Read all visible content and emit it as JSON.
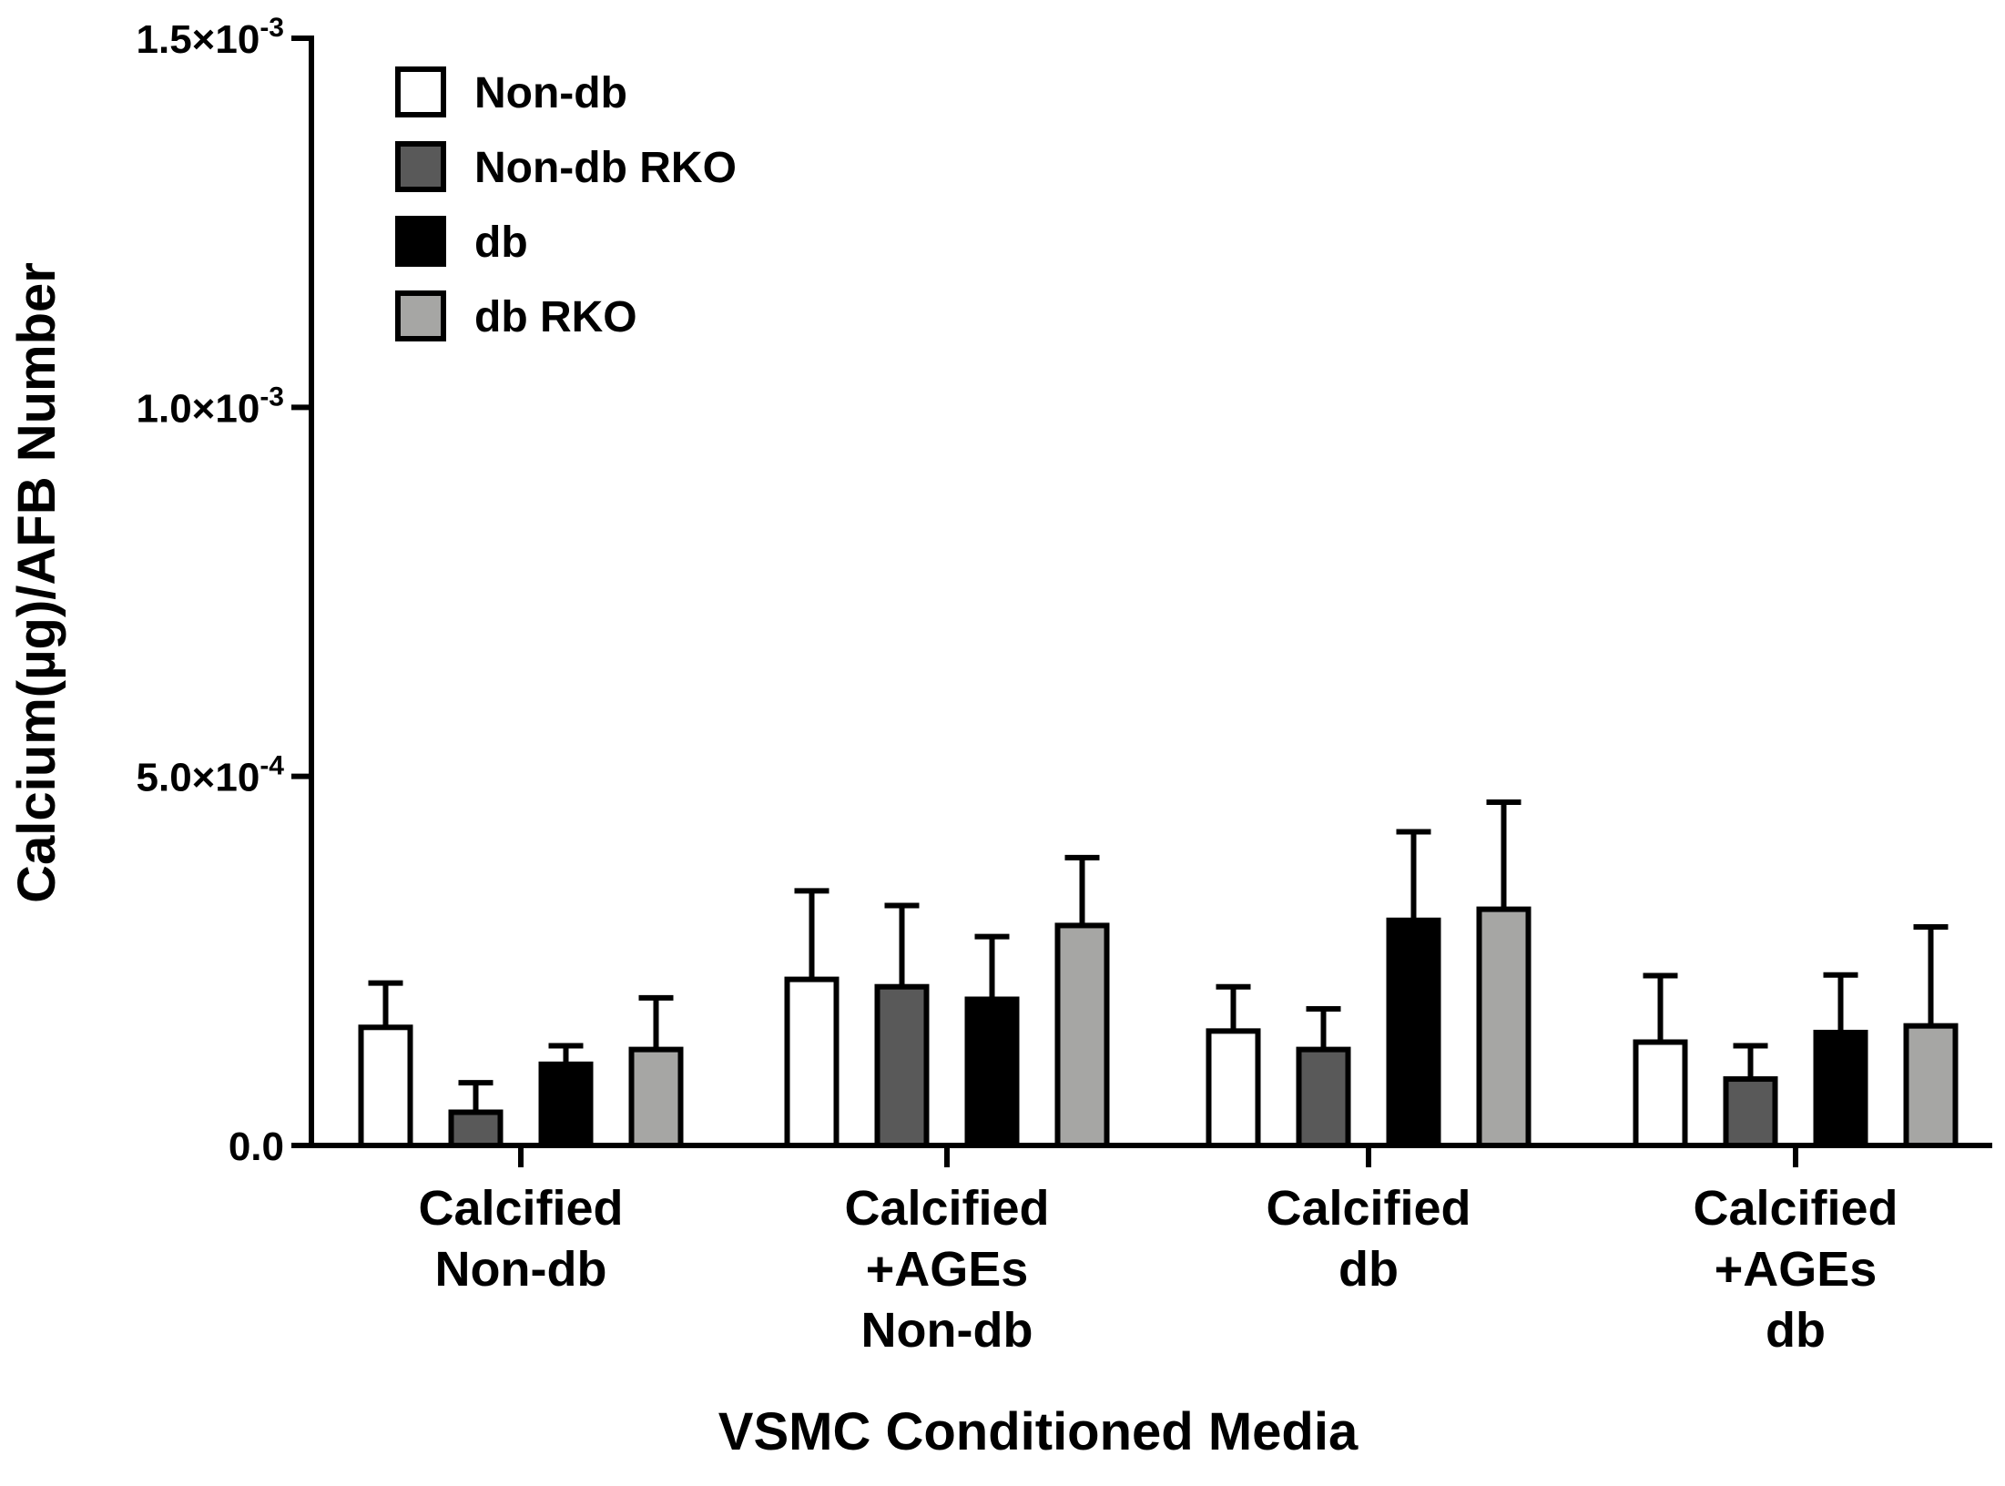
{
  "chart_data": {
    "type": "bar",
    "title": "",
    "xlabel": "VSMC Conditioned Media",
    "ylabel": "Calcium(µg)/AFB Number",
    "ylim": [
      0,
      0.0015
    ],
    "yticks": [
      {
        "value": 0,
        "label": "0.0",
        "exp": ""
      },
      {
        "value": 0.0005,
        "label": "5.0×10",
        "exp": "-4"
      },
      {
        "value": 0.001,
        "label": "1.0×10",
        "exp": "-3"
      },
      {
        "value": 0.0015,
        "label": "1.5×10",
        "exp": "-3"
      }
    ],
    "legend_position": "top-left",
    "categories": [
      {
        "lines": [
          "Calcified",
          "Non-db"
        ]
      },
      {
        "lines": [
          "Calcified",
          "+AGEs",
          "Non-db"
        ]
      },
      {
        "lines": [
          "Calcified",
          "db"
        ]
      },
      {
        "lines": [
          "Calcified",
          "+AGEs",
          "db"
        ]
      }
    ],
    "series": [
      {
        "name": "Non-db",
        "color": "#ffffff",
        "values": [
          0.00016,
          0.000225,
          0.000155,
          0.00014
        ],
        "errors": [
          6e-05,
          0.00012,
          6e-05,
          9e-05
        ]
      },
      {
        "name": "Non-db RKO",
        "color": "#595959",
        "values": [
          4.5e-05,
          0.000215,
          0.00013,
          9e-05
        ],
        "errors": [
          4e-05,
          0.00011,
          5.5e-05,
          4.5e-05
        ]
      },
      {
        "name": "db",
        "color": "#000000",
        "values": [
          0.00011,
          0.000198,
          0.000305,
          0.000153
        ],
        "errors": [
          2.5e-05,
          8.5e-05,
          0.00012,
          7.8e-05
        ]
      },
      {
        "name": "db RKO",
        "color": "#a6a6a4",
        "values": [
          0.00013,
          0.000298,
          0.00032,
          0.000162
        ],
        "errors": [
          7e-05,
          9.2e-05,
          0.000145,
          0.000134
        ]
      }
    ]
  }
}
